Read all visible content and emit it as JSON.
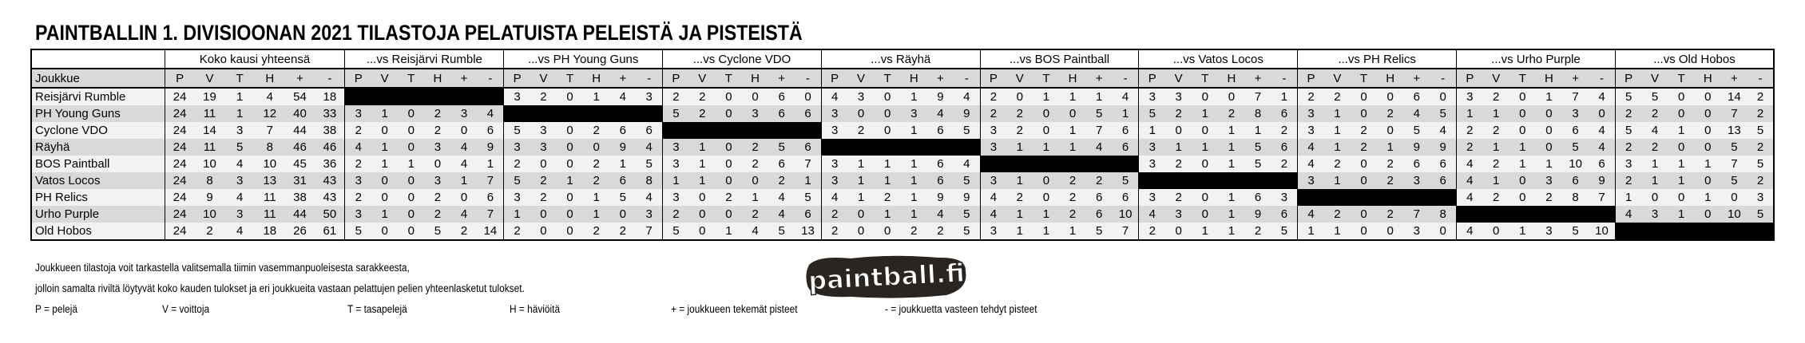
{
  "title": "PAINTBALLIN 1. DIVISIOONAN 2021 TILASTOJA PELATUISTA PELEISTÄ JA PISTEISTÄ",
  "table": {
    "group_headers": [
      "Koko kausi yhteensä",
      "...vs Reisjärvi Rumble",
      "...vs PH Young Guns",
      "...vs Cyclone VDO",
      "...vs Räyhä",
      "...vs BOS Paintball",
      "...vs Vatos Locos",
      "...vs PH Relics",
      "...vs Urho Purple",
      "...vs Old Hobos"
    ],
    "team_column_header": "Joukkue",
    "stat_headers": [
      "P",
      "V",
      "T",
      "H",
      "+",
      "-"
    ],
    "rows": [
      {
        "team": "Reisjärvi Rumble",
        "total": [
          24,
          19,
          1,
          4,
          54,
          18
        ],
        "vs": [
          null,
          [
            3,
            2,
            0,
            1,
            4,
            3
          ],
          [
            2,
            2,
            0,
            0,
            6,
            0
          ],
          [
            4,
            3,
            0,
            1,
            9,
            4
          ],
          [
            2,
            0,
            1,
            1,
            1,
            4
          ],
          [
            3,
            3,
            0,
            0,
            7,
            1
          ],
          [
            2,
            2,
            0,
            0,
            6,
            0
          ],
          [
            3,
            2,
            0,
            1,
            7,
            4
          ],
          [
            5,
            5,
            0,
            0,
            14,
            2
          ]
        ]
      },
      {
        "team": "PH Young Guns",
        "total": [
          24,
          11,
          1,
          12,
          40,
          33
        ],
        "vs": [
          [
            3,
            1,
            0,
            2,
            3,
            4
          ],
          null,
          [
            5,
            2,
            0,
            3,
            6,
            6
          ],
          [
            3,
            0,
            0,
            3,
            4,
            9
          ],
          [
            2,
            2,
            0,
            0,
            5,
            1
          ],
          [
            5,
            2,
            1,
            2,
            8,
            6
          ],
          [
            3,
            1,
            0,
            2,
            4,
            5
          ],
          [
            1,
            1,
            0,
            0,
            3,
            0
          ],
          [
            2,
            2,
            0,
            0,
            7,
            2
          ]
        ]
      },
      {
        "team": "Cyclone VDO",
        "total": [
          24,
          14,
          3,
          7,
          44,
          38
        ],
        "vs": [
          [
            2,
            0,
            0,
            2,
            0,
            6
          ],
          [
            5,
            3,
            0,
            2,
            6,
            6
          ],
          null,
          [
            3,
            2,
            0,
            1,
            6,
            5
          ],
          [
            3,
            2,
            0,
            1,
            7,
            6
          ],
          [
            1,
            0,
            0,
            1,
            1,
            2
          ],
          [
            3,
            1,
            2,
            0,
            5,
            4
          ],
          [
            2,
            2,
            0,
            0,
            6,
            4
          ],
          [
            5,
            4,
            1,
            0,
            13,
            5
          ]
        ]
      },
      {
        "team": "Räyhä",
        "total": [
          24,
          11,
          5,
          8,
          46,
          46
        ],
        "vs": [
          [
            4,
            1,
            0,
            3,
            4,
            9
          ],
          [
            3,
            3,
            0,
            0,
            9,
            4
          ],
          [
            3,
            1,
            0,
            2,
            5,
            6
          ],
          null,
          [
            3,
            1,
            1,
            1,
            4,
            6
          ],
          [
            3,
            1,
            1,
            1,
            5,
            6
          ],
          [
            4,
            1,
            2,
            1,
            9,
            9
          ],
          [
            2,
            1,
            1,
            0,
            5,
            4
          ],
          [
            2,
            2,
            0,
            0,
            5,
            2
          ]
        ]
      },
      {
        "team": "BOS Paintball",
        "total": [
          24,
          10,
          4,
          10,
          45,
          36
        ],
        "vs": [
          [
            2,
            1,
            1,
            0,
            4,
            1
          ],
          [
            2,
            0,
            0,
            2,
            1,
            5
          ],
          [
            3,
            1,
            0,
            2,
            6,
            7
          ],
          [
            3,
            1,
            1,
            1,
            6,
            4
          ],
          null,
          [
            3,
            2,
            0,
            1,
            5,
            2
          ],
          [
            4,
            2,
            0,
            2,
            6,
            6
          ],
          [
            4,
            2,
            1,
            1,
            10,
            6
          ],
          [
            3,
            1,
            1,
            1,
            7,
            5
          ]
        ]
      },
      {
        "team": "Vatos Locos",
        "total": [
          24,
          8,
          3,
          13,
          31,
          43
        ],
        "vs": [
          [
            3,
            0,
            0,
            3,
            1,
            7
          ],
          [
            5,
            2,
            1,
            2,
            6,
            8
          ],
          [
            1,
            1,
            0,
            0,
            2,
            1
          ],
          [
            3,
            1,
            1,
            1,
            6,
            5
          ],
          [
            3,
            1,
            0,
            2,
            2,
            5
          ],
          null,
          [
            3,
            1,
            0,
            2,
            3,
            6
          ],
          [
            4,
            1,
            0,
            3,
            6,
            9
          ],
          [
            2,
            1,
            1,
            0,
            5,
            2
          ]
        ]
      },
      {
        "team": "PH Relics",
        "total": [
          24,
          9,
          4,
          11,
          38,
          43
        ],
        "vs": [
          [
            2,
            0,
            0,
            2,
            0,
            6
          ],
          [
            3,
            2,
            0,
            1,
            5,
            4
          ],
          [
            3,
            0,
            2,
            1,
            4,
            5
          ],
          [
            4,
            1,
            2,
            1,
            9,
            9
          ],
          [
            4,
            2,
            0,
            2,
            6,
            6
          ],
          [
            3,
            2,
            0,
            1,
            6,
            3
          ],
          null,
          [
            4,
            2,
            0,
            2,
            8,
            7
          ],
          [
            1,
            0,
            0,
            1,
            0,
            3
          ]
        ]
      },
      {
        "team": "Urho Purple",
        "total": [
          24,
          10,
          3,
          11,
          44,
          50
        ],
        "vs": [
          [
            3,
            1,
            0,
            2,
            4,
            7
          ],
          [
            1,
            0,
            0,
            1,
            0,
            3
          ],
          [
            2,
            0,
            0,
            2,
            4,
            6
          ],
          [
            2,
            0,
            1,
            1,
            4,
            5
          ],
          [
            4,
            1,
            1,
            2,
            6,
            10
          ],
          [
            4,
            3,
            0,
            1,
            9,
            6
          ],
          [
            4,
            2,
            0,
            2,
            7,
            8
          ],
          null,
          [
            4,
            3,
            1,
            0,
            10,
            5
          ]
        ]
      },
      {
        "team": "Old Hobos",
        "total": [
          24,
          2,
          4,
          18,
          26,
          61
        ],
        "vs": [
          [
            5,
            0,
            0,
            5,
            2,
            14
          ],
          [
            2,
            0,
            0,
            2,
            2,
            7
          ],
          [
            5,
            0,
            1,
            4,
            5,
            13
          ],
          [
            2,
            0,
            0,
            2,
            2,
            5
          ],
          [
            3,
            1,
            1,
            1,
            5,
            7
          ],
          [
            2,
            0,
            1,
            1,
            2,
            5
          ],
          [
            1,
            1,
            0,
            0,
            3,
            0
          ],
          [
            4,
            0,
            1,
            3,
            5,
            10
          ],
          null
        ]
      }
    ]
  },
  "footer": {
    "line1": "Joukkueen tilastoja voit tarkastella valitsemalla tiimin vasemmanpuoleisesta sarakkeesta,",
    "line2": "jolloin samalta riviltä löytyvät koko kauden tulokset ja eri joukkueita vastaan pelattujen pelien yhteenlasketut tulokset.",
    "legend": [
      "P = pelejä",
      "V = voittoja",
      "T = tasapelejä",
      "H = häviöitä",
      "+ = joukkueen tekemät pisteet",
      "- = joukkuetta vasteen tehdyt pisteet"
    ]
  },
  "logo": {
    "text": "paintball.fi"
  },
  "colors": {
    "header_gray": "#d9d9d9",
    "row_light": "#f2f2f2",
    "row_dark": "#d9d9d9",
    "blocked": "#000000"
  }
}
